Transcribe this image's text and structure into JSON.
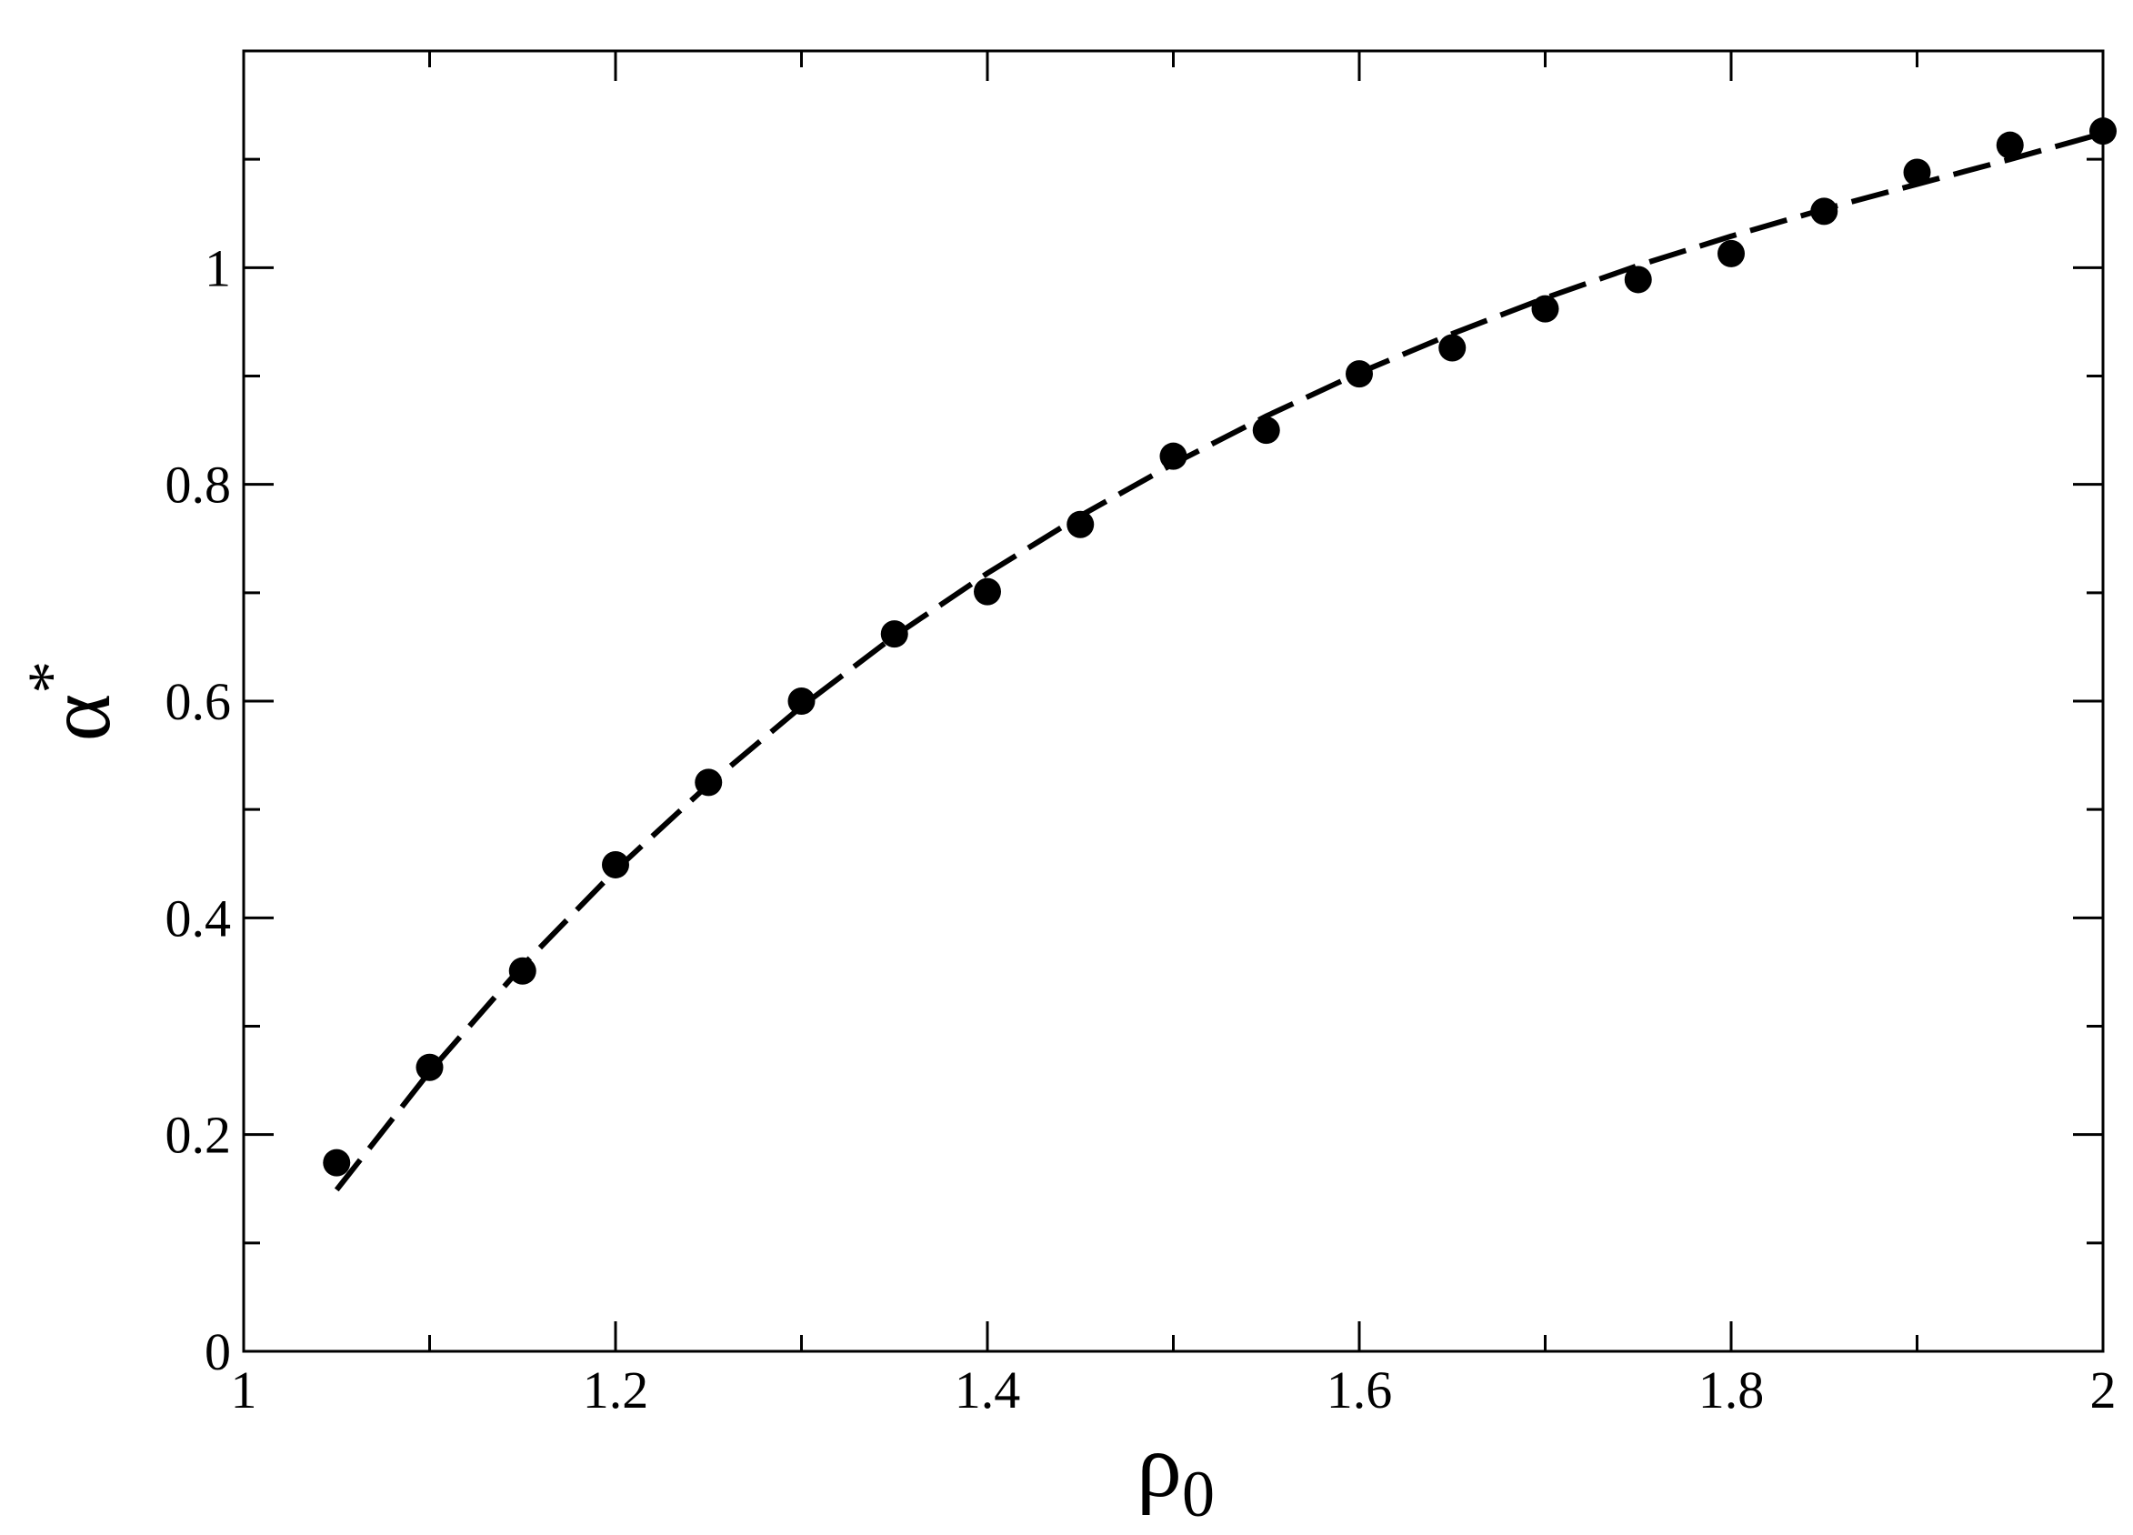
{
  "chart_data": {
    "type": "scatter",
    "xlabel": "ρ",
    "xlabel_sub": "0",
    "ylabel": "α",
    "ylabel_sup": "*",
    "x": [
      1.05,
      1.1,
      1.15,
      1.2,
      1.25,
      1.3,
      1.35,
      1.4,
      1.45,
      1.5,
      1.55,
      1.6,
      1.65,
      1.7,
      1.75,
      1.8,
      1.85,
      1.9,
      1.95,
      2.0
    ],
    "series": [
      {
        "color": "#000000",
        "mode": "markers",
        "values": [
          0.174,
          0.262,
          0.351,
          0.449,
          0.525,
          0.6,
          0.662,
          0.701,
          0.763,
          0.826,
          0.85,
          0.902,
          0.926,
          0.962,
          0.989,
          1.013,
          1.052,
          1.088,
          1.113,
          1.126
        ]
      },
      {
        "color": "#000000",
        "mode": "dashed-line",
        "values": [
          0.149,
          0.258,
          0.356,
          0.444,
          0.523,
          0.595,
          0.66,
          0.718,
          0.771,
          0.819,
          0.863,
          0.903,
          0.939,
          0.972,
          1.002,
          1.029,
          1.054,
          1.077,
          1.1,
          1.124
        ]
      }
    ],
    "xlim": [
      1,
      2
    ],
    "xticks": [
      1,
      1.2,
      1.4,
      1.6,
      1.8,
      2
    ],
    "xminorticks": [
      1.1,
      1.3,
      1.5,
      1.7,
      1.9
    ],
    "ylim": [
      0,
      1.2
    ],
    "yticks": [
      0,
      0.2,
      0.4,
      0.6,
      0.8,
      1
    ],
    "yminorticks": [
      0.1,
      0.3,
      0.5,
      0.7,
      0.9,
      1.1
    ],
    "grid": false,
    "mirror_ticks": true
  }
}
